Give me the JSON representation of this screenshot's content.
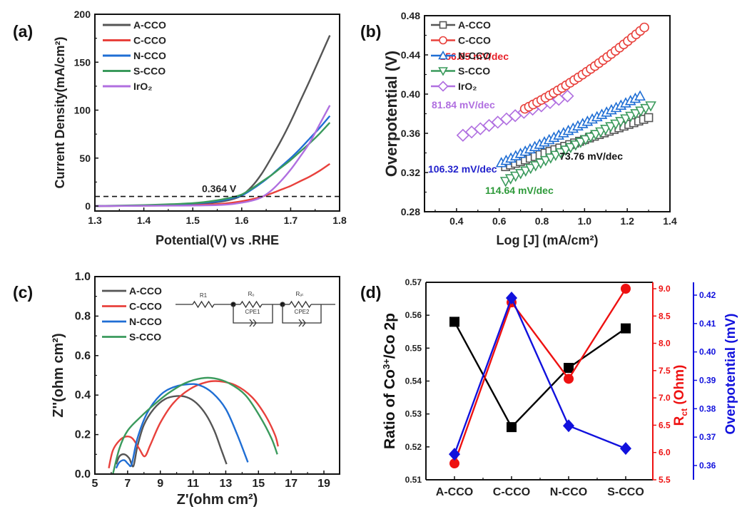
{
  "chart_data": [
    {
      "panel": "(a)",
      "type": "line",
      "title": "",
      "xlabel": "Potential(V) vs .RHE",
      "ylabel": "Current Density(mA/cm²)",
      "xlim": [
        1.3,
        1.8
      ],
      "ylim": [
        -5,
        200
      ],
      "xticks": [
        "1.3",
        "1.4",
        "1.5",
        "1.6",
        "1.7",
        "1.8"
      ],
      "yticks": [
        "0",
        "50",
        "100",
        "150",
        "200"
      ],
      "legend": "top-left",
      "reference_line": {
        "y": 10,
        "style": "dashed",
        "label": "0.364 V"
      },
      "series": [
        {
          "name": "A-CCO",
          "color": "#555555",
          "x": [
            1.3,
            1.4,
            1.5,
            1.55,
            1.58,
            1.6,
            1.62,
            1.64,
            1.66,
            1.68,
            1.7,
            1.72,
            1.74,
            1.76,
            1.78
          ],
          "y": [
            0,
            0.5,
            2,
            4,
            7,
            11,
            20,
            33,
            50,
            68,
            88,
            110,
            132,
            155,
            178
          ]
        },
        {
          "name": "C-CCO",
          "color": "#e8413c",
          "x": [
            1.3,
            1.4,
            1.5,
            1.55,
            1.58,
            1.6,
            1.62,
            1.64,
            1.66,
            1.68,
            1.7,
            1.72,
            1.74,
            1.76,
            1.78
          ],
          "y": [
            0,
            0.3,
            1,
            2,
            3.5,
            5,
            7,
            9.5,
            13,
            17,
            21,
            26,
            31,
            37,
            44
          ]
        },
        {
          "name": "N-CCO",
          "color": "#1f6ed4",
          "x": [
            1.3,
            1.4,
            1.5,
            1.55,
            1.58,
            1.6,
            1.62,
            1.64,
            1.66,
            1.68,
            1.7,
            1.72,
            1.74,
            1.76,
            1.78
          ],
          "y": [
            0,
            0.5,
            2.5,
            5,
            8,
            11,
            17,
            24,
            32,
            41,
            50,
            60,
            71,
            82,
            94
          ]
        },
        {
          "name": "S-CCO",
          "color": "#3a9a5c",
          "x": [
            1.3,
            1.4,
            1.5,
            1.55,
            1.58,
            1.6,
            1.62,
            1.64,
            1.66,
            1.68,
            1.7,
            1.72,
            1.74,
            1.76,
            1.78
          ],
          "y": [
            0,
            1,
            3,
            6,
            9,
            12,
            18,
            25,
            32,
            40,
            48,
            57,
            66,
            76,
            87
          ]
        },
        {
          "name": "IrO₂",
          "color": "#b06fe0",
          "x": [
            1.3,
            1.4,
            1.5,
            1.55,
            1.58,
            1.6,
            1.62,
            1.64,
            1.66,
            1.68,
            1.7,
            1.72,
            1.74,
            1.76,
            1.78
          ],
          "y": [
            0,
            0.2,
            0.5,
            1,
            2,
            3.5,
            5.5,
            9,
            16,
            26,
            38,
            52,
            67,
            86,
            105
          ]
        }
      ]
    },
    {
      "panel": "(b)",
      "type": "scatter",
      "title": "",
      "xlabel": "Log [J] (mA/cm²)",
      "ylabel": "Overpotential (V)",
      "xlim": [
        0.25,
        1.4
      ],
      "ylim": [
        0.28,
        0.48
      ],
      "xticks": [
        "0.4",
        "0.6",
        "0.8",
        "1.0",
        "1.2",
        "1.4"
      ],
      "yticks": [
        "0.28",
        "0.32",
        "0.36",
        "0.40",
        "0.44",
        "0.48"
      ],
      "legend": "top-left",
      "series": [
        {
          "name": "A-CCO",
          "color": "#555555",
          "marker": "square",
          "x_range": [
            0.63,
            1.3
          ],
          "y_range": [
            0.326,
            0.376
          ],
          "slope_label": "73.76 mV/dec",
          "label_color": "#111111"
        },
        {
          "name": "C-CCO",
          "color": "#e8413c",
          "marker": "circle",
          "x_range": [
            0.72,
            1.28
          ],
          "y_range": [
            0.385,
            0.468
          ],
          "slope_label": "156.85 mV/dec",
          "label_color": "#e8212a"
        },
        {
          "name": "N-CCO",
          "color": "#1f6ed4",
          "marker": "triangle-up",
          "x_range": [
            0.61,
            1.26
          ],
          "y_range": [
            0.33,
            0.398
          ],
          "slope_label": "106.32 mV/dec",
          "label_color": "#2222cc"
        },
        {
          "name": "S-CCO",
          "color": "#3a9a5c",
          "marker": "triangle-down",
          "x_range": [
            0.63,
            1.31
          ],
          "y_range": [
            0.311,
            0.388
          ],
          "slope_label": "114.64 mV/dec",
          "label_color": "#2e9a3a"
        },
        {
          "name": "IrO₂",
          "color": "#b06fe0",
          "marker": "diamond",
          "x_range": [
            0.43,
            0.92
          ],
          "y_range": [
            0.358,
            0.398
          ],
          "slope_label": "81.84 mV/dec",
          "label_color": "#b06fe0"
        }
      ]
    },
    {
      "panel": "(c)",
      "type": "line",
      "title": "",
      "xlabel": "Z'(ohm cm²)",
      "ylabel": "Z''(ohm cm²)",
      "xlim": [
        5,
        20
      ],
      "ylim": [
        0,
        1.0
      ],
      "xticks": [
        "5",
        "7",
        "9",
        "11",
        "13",
        "15",
        "17",
        "19"
      ],
      "yticks": [
        "0.0",
        "0.2",
        "0.4",
        "0.6",
        "0.8",
        "1.0"
      ],
      "legend": "top-left",
      "inset": {
        "type": "equivalent-circuit",
        "labels": [
          "R1",
          "Rₒ",
          "Rₔₜ",
          "CPE1",
          "CPE2"
        ]
      },
      "series": [
        {
          "name": "A-CCO",
          "color": "#555555",
          "x": [
            6.3,
            6.5,
            6.8,
            7.1,
            7.35,
            7.6,
            8.0,
            8.6,
            9.3,
            10.0,
            10.6,
            11.2,
            11.8,
            12.3,
            12.7,
            13.05
          ],
          "y": [
            0.05,
            0.09,
            0.1,
            0.08,
            0.04,
            0.14,
            0.25,
            0.33,
            0.38,
            0.395,
            0.39,
            0.36,
            0.3,
            0.22,
            0.13,
            0.05
          ]
        },
        {
          "name": "C-CCO",
          "color": "#e8413c",
          "x": [
            5.85,
            6.1,
            6.5,
            6.9,
            7.3,
            7.7,
            8.05,
            8.4,
            9.0,
            9.8,
            10.8,
            11.8,
            12.6,
            13.6,
            14.6,
            15.4,
            16.0,
            16.2
          ],
          "y": [
            0.03,
            0.12,
            0.17,
            0.19,
            0.18,
            0.13,
            0.09,
            0.15,
            0.26,
            0.36,
            0.43,
            0.465,
            0.47,
            0.45,
            0.39,
            0.3,
            0.2,
            0.14
          ]
        },
        {
          "name": "N-CCO",
          "color": "#1f6ed4",
          "x": [
            6.3,
            6.5,
            6.8,
            7.05,
            7.25,
            7.6,
            8.2,
            9.0,
            9.8,
            10.7,
            11.4,
            12.2,
            13.0,
            13.7,
            14.35
          ],
          "y": [
            0.03,
            0.06,
            0.07,
            0.05,
            0.05,
            0.18,
            0.31,
            0.4,
            0.44,
            0.455,
            0.45,
            0.41,
            0.33,
            0.2,
            0.06
          ]
        },
        {
          "name": "S-CCO",
          "color": "#3a9a5c",
          "x": [
            6.1,
            6.5,
            7.0,
            7.8,
            8.6,
            9.5,
            10.5,
            11.5,
            12.3,
            13.2,
            14.2,
            15.1,
            15.8,
            16.15
          ],
          "y": [
            0.0,
            0.13,
            0.22,
            0.29,
            0.35,
            0.41,
            0.46,
            0.485,
            0.485,
            0.46,
            0.4,
            0.29,
            0.18,
            0.1
          ]
        }
      ]
    },
    {
      "panel": "(d)",
      "type": "line",
      "title": "",
      "categories": [
        "A-CCO",
        "C-CCO",
        "N-CCO",
        "S-CCO"
      ],
      "xlabel": "",
      "ylabel": "Ratio of Co³⁺/Co 2p",
      "ylabel_right": "R_ct (Ohm)",
      "ylabel_right2": "Overpotential (mV)",
      "ylim": [
        0.51,
        0.57
      ],
      "ylim_right": [
        5.5,
        9.28
      ],
      "ylim_right2": [
        0.355,
        0.4245
      ],
      "yticks": [
        "0.51",
        "0.52",
        "0.53",
        "0.54",
        "0.55",
        "0.56",
        "0.57"
      ],
      "yticks_right": [
        "5.5",
        "6.0",
        "6.5",
        "7.0",
        "7.5",
        "8.0",
        "8.5",
        "9.0"
      ],
      "yticks_right2": [
        "0.36",
        "0.37",
        "0.38",
        "0.39",
        "0.40",
        "0.41",
        "0.42"
      ],
      "series": [
        {
          "name": "Ratio of Co3+/Co 2p",
          "axis": "left",
          "color": "#000000",
          "marker": "square",
          "values": [
            0.558,
            0.526,
            0.544,
            0.556
          ]
        },
        {
          "name": "Rct",
          "axis": "right",
          "color": "#ee1111",
          "marker": "circle",
          "values": [
            5.8,
            8.75,
            7.35,
            9.0
          ]
        },
        {
          "name": "Overpotential",
          "axis": "right2",
          "color": "#1111dd",
          "marker": "diamond",
          "values": [
            0.364,
            0.419,
            0.374,
            0.366
          ]
        }
      ]
    }
  ],
  "panel_labels": [
    "(a)",
    "(b)",
    "(c)",
    "(d)"
  ]
}
